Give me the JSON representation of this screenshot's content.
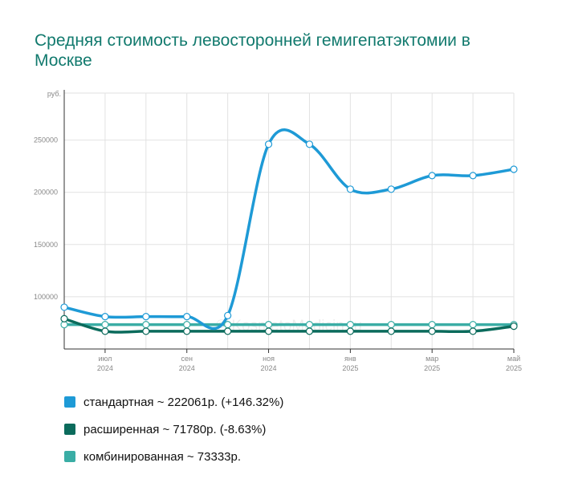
{
  "chart_data": {
    "type": "line",
    "title": "Средняя стоимость левосторонней гемигепатэктомии в Москве",
    "ylabel": "руб.",
    "ylim": [
      50000,
      295000
    ],
    "yticks": [
      100000,
      150000,
      200000,
      250000
    ],
    "ytick_labels": [
      "100000",
      "150000",
      "200000",
      "250000"
    ],
    "x_ticks": [
      {
        "m": "июл",
        "y": "2024"
      },
      {
        "m": "сен",
        "y": "2024"
      },
      {
        "m": "ноя",
        "y": "2024"
      },
      {
        "m": "янв",
        "y": "2025"
      },
      {
        "m": "мар",
        "y": "2025"
      },
      {
        "m": "май",
        "y": "2025"
      }
    ],
    "x": [
      "2024-06",
      "2024-07",
      "2024-08",
      "2024-09",
      "2024-10",
      "2024-11",
      "2024-12",
      "2025-01",
      "2025-02",
      "2025-03",
      "2025-04",
      "2025-05"
    ],
    "series": [
      {
        "name": "стандартная ~ 222061р. (+146.32%)",
        "color": "#1e9ad6",
        "values": [
          90000,
          81000,
          81000,
          81000,
          82000,
          246000,
          246000,
          203000,
          203000,
          216000,
          216000,
          222061
        ]
      },
      {
        "name": "расширенная ~ 71780р. (-8.63%)",
        "color": "#0b6b5c",
        "values": [
          79000,
          67000,
          67000,
          67000,
          67000,
          67000,
          67000,
          67000,
          67000,
          67000,
          67000,
          71780
        ]
      },
      {
        "name": "комбинированная ~ 73333р.",
        "color": "#3aada5",
        "values": [
          73333,
          73333,
          73333,
          73333,
          73333,
          73333,
          73333,
          73333,
          73333,
          73333,
          73333,
          73333
        ]
      }
    ],
    "grid": true,
    "legend_position": "bottom",
    "watermark": "© KosmetoMedicin.ru"
  }
}
